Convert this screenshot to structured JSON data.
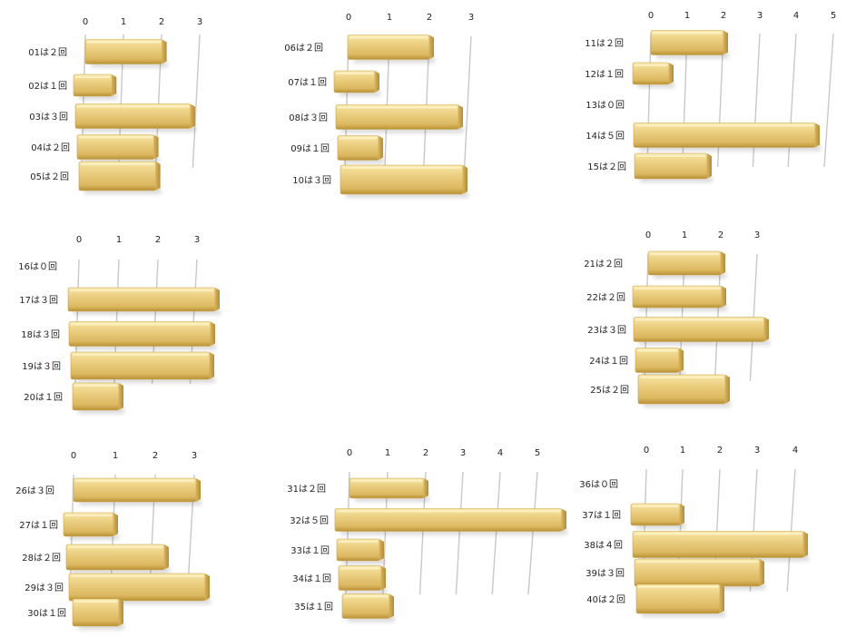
{
  "chart_data": [
    {
      "type": "bar",
      "categories": [
        "01は２回",
        "02は１回",
        "03は３回",
        "04は２回",
        "05は２回"
      ],
      "values": [
        2,
        1,
        3,
        2,
        2
      ],
      "ticks": [
        0,
        1,
        2,
        3
      ]
    },
    {
      "type": "bar",
      "categories": [
        "06は２回",
        "07は１回",
        "08は３回",
        "09は１回",
        "10は３回"
      ],
      "values": [
        2,
        1,
        3,
        1,
        3
      ],
      "ticks": [
        0,
        1,
        2,
        3
      ]
    },
    {
      "type": "bar",
      "categories": [
        "11は２回",
        "12は１回",
        "13は０回",
        "14は５回",
        "15は２回"
      ],
      "values": [
        2,
        1,
        0,
        5,
        2
      ],
      "ticks": [
        0,
        1,
        2,
        3,
        4,
        5
      ]
    },
    {
      "type": "bar",
      "categories": [
        "16は０回",
        "17は３回",
        "18は３回",
        "19は３回",
        "20は１回"
      ],
      "values": [
        0,
        3,
        3,
        3,
        1
      ],
      "ticks": [
        0,
        1,
        2,
        3
      ]
    },
    {
      "type": "bar",
      "categories": [
        "21は２回",
        "22は２回",
        "23は３回",
        "24は１回",
        "25は２回"
      ],
      "values": [
        2,
        2,
        3,
        1,
        2
      ],
      "ticks": [
        0,
        1,
        2,
        3
      ]
    },
    {
      "type": "bar",
      "categories": [
        "26は３回",
        "27は１回",
        "28は２回",
        "29は３回",
        "30は１回"
      ],
      "values": [
        3,
        1,
        2,
        3,
        1
      ],
      "ticks": [
        0,
        1,
        2,
        3
      ]
    },
    {
      "type": "bar",
      "categories": [
        "31は２回",
        "32は５回",
        "33は１回",
        "34は１回",
        "35は１回"
      ],
      "values": [
        2,
        5,
        1,
        1,
        1
      ],
      "ticks": [
        0,
        1,
        2,
        3,
        4,
        5
      ]
    },
    {
      "type": "bar",
      "categories": [
        "36は０回",
        "37は１回",
        "38は４回",
        "39は３回",
        "40は２回"
      ],
      "values": [
        0,
        1,
        4,
        3,
        2
      ],
      "ticks": [
        0,
        1,
        2,
        3,
        4
      ]
    }
  ],
  "colors": {
    "bar_top": "#f7e6a4",
    "bar_mid": "#e8c66e",
    "bar_dark": "#b99135",
    "grid": "#c8c8c8"
  }
}
